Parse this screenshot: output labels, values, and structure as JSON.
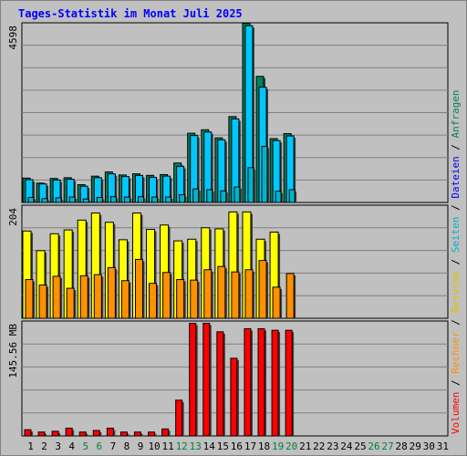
{
  "title": "Tages-Statistik im Monat Juli 2025",
  "colors": {
    "background": "#c0c0c0",
    "grid": "#808080",
    "title": "#0000ff",
    "anfragen": "#008060",
    "dateien": "#00c8ff",
    "seiten": "#00b4c8",
    "besuche": "#ffff00",
    "rechner": "#ff9000",
    "volumen": "#ff0000",
    "weekend_label": "#008040",
    "weekday_label": "#000000"
  },
  "legend_right": [
    {
      "label": "Volumen",
      "color": "#ff0000"
    },
    {
      "label": " / ",
      "color": "#000000"
    },
    {
      "label": "Rechner",
      "color": "#ff9000"
    },
    {
      "label": " / ",
      "color": "#000000"
    },
    {
      "label": "Besuche",
      "color": "#e0c000"
    },
    {
      "label": " / ",
      "color": "#000000"
    },
    {
      "label": "Seiten",
      "color": "#00b4c8"
    },
    {
      "label": " / ",
      "color": "#000000"
    },
    {
      "label": "Dateien",
      "color": "#0000ff"
    },
    {
      "label": " / ",
      "color": "#000000"
    },
    {
      "label": "Anfragen",
      "color": "#008060"
    }
  ],
  "chart_data": [
    {
      "type": "bar",
      "name": "hits",
      "ymax_label": "4598",
      "ylim": [
        0,
        4598
      ],
      "categories": [
        "1",
        "2",
        "3",
        "4",
        "5",
        "6",
        "7",
        "8",
        "9",
        "10",
        "11",
        "12",
        "13",
        "14",
        "15",
        "16",
        "17",
        "18",
        "19",
        "20",
        "21",
        "22",
        "23",
        "24",
        "25",
        "26",
        "27",
        "28",
        "29",
        "30",
        "31"
      ],
      "weekend_days": [
        5,
        6,
        12,
        13,
        19,
        20,
        26,
        27
      ],
      "series": [
        {
          "name": "Anfragen",
          "values": [
            630,
            500,
            620,
            640,
            460,
            680,
            790,
            710,
            740,
            700,
            720,
            1020,
            1790,
            1880,
            1670,
            2220,
            4630,
            3260,
            1650,
            1780,
            0,
            0,
            0,
            0,
            0,
            0,
            0,
            0,
            0,
            0,
            0
          ]
        },
        {
          "name": "Dateien",
          "values": [
            590,
            480,
            580,
            600,
            420,
            640,
            740,
            670,
            700,
            650,
            680,
            930,
            1730,
            1820,
            1620,
            2160,
            4570,
            2980,
            1600,
            1720,
            0,
            0,
            0,
            0,
            0,
            0,
            0,
            0,
            0,
            0,
            0
          ]
        },
        {
          "name": "Seiten",
          "values": [
            130,
            100,
            120,
            140,
            90,
            130,
            150,
            140,
            150,
            140,
            140,
            200,
            350,
            330,
            300,
            400,
            900,
            1450,
            290,
            330,
            0,
            0,
            0,
            0,
            0,
            0,
            0,
            0,
            0,
            0,
            0
          ]
        }
      ]
    },
    {
      "type": "bar",
      "name": "visits",
      "ymax_label": "204",
      "ylim": [
        0,
        204
      ],
      "series": [
        {
          "name": "Besuche",
          "values": [
            160,
            124,
            155,
            162,
            180,
            193,
            176,
            144,
            193,
            163,
            171,
            142,
            145,
            166,
            164,
            195,
            195,
            145,
            158,
            0,
            0,
            0,
            0,
            0,
            0,
            0,
            0,
            0,
            0,
            0,
            0
          ]
        },
        {
          "name": "Rechner",
          "values": [
            71,
            61,
            77,
            55,
            78,
            80,
            93,
            69,
            108,
            64,
            84,
            71,
            70,
            89,
            95,
            85,
            89,
            106,
            57,
            82,
            0,
            0,
            0,
            0,
            0,
            0,
            0,
            0,
            0,
            0,
            0
          ]
        }
      ]
    },
    {
      "type": "bar",
      "name": "volume",
      "ymax_label": "145.56 MB",
      "ylim": [
        0,
        145.56
      ],
      "series": [
        {
          "name": "Volumen",
          "values": [
            8,
            5,
            6,
            10,
            5,
            7,
            10,
            5,
            5,
            5,
            9,
            46,
            145,
            145,
            134,
            100,
            138,
            138,
            136,
            136,
            0,
            0,
            0,
            0,
            0,
            0,
            0,
            0,
            0,
            0,
            0
          ]
        }
      ]
    }
  ]
}
